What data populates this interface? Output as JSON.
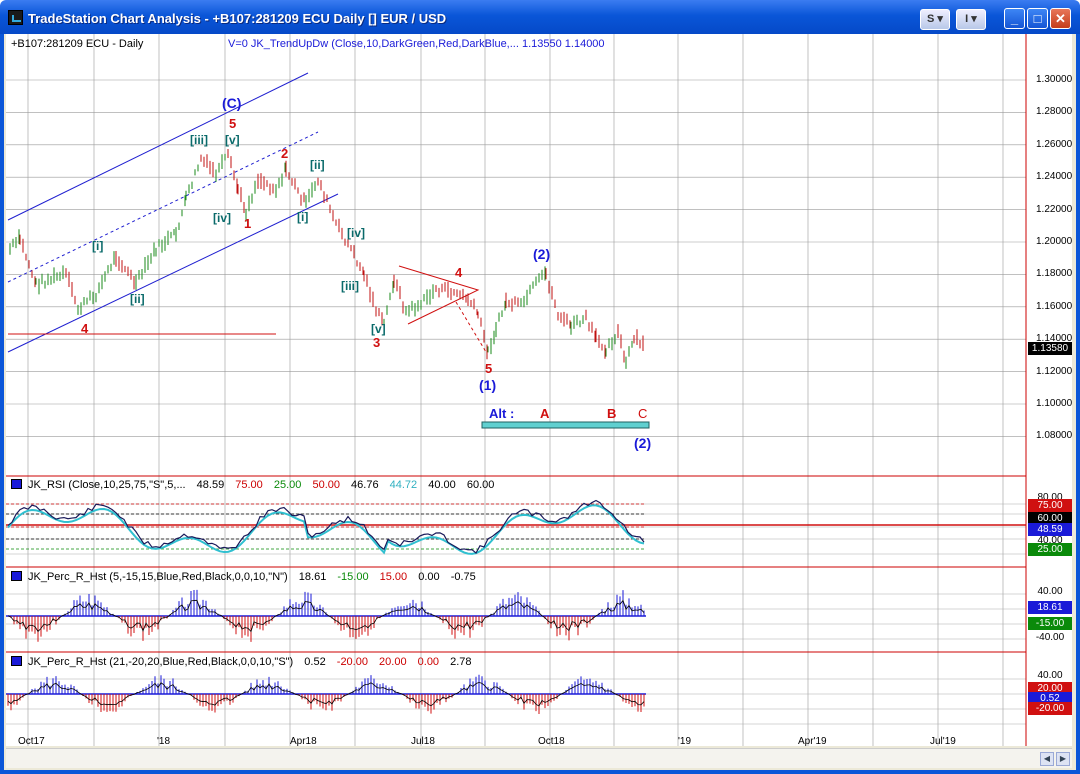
{
  "window": {
    "title": "TradeStation Chart Analysis - +B107:281209 ECU Daily [] EUR / USD",
    "s_button": "S",
    "i_button": "I",
    "min": "_",
    "max": "□",
    "close": "✕"
  },
  "header": {
    "symbol": "+B107:281209 ECU - Daily",
    "study": "V=0  JK_TrendUpDw (Close,10,DarkGreen,Red,DarkBlue,...  1.13550  1.14000"
  },
  "price_axis": [
    "1.30000",
    "1.28000",
    "1.26000",
    "1.24000",
    "1.22000",
    "1.20000",
    "1.18000",
    "1.16000",
    "1.14000",
    "1.12000",
    "1.10000",
    "1.08000"
  ],
  "last_price": "1.13580",
  "x_axis": [
    "Oct17",
    "'18",
    "Apr18",
    "Jul18",
    "Oct18",
    "'19",
    "Apr'19",
    "Jul'19"
  ],
  "annotations": {
    "c_wave": "(C)",
    "five_top": "5",
    "iii": "[iii]",
    "v": "[v]",
    "two": "2",
    "ii_top": "[ii]",
    "iv": "[iv]",
    "one": "1",
    "i_right": "[i]",
    "i_left": "[i]",
    "ii_left": "[ii]",
    "four_low": "4",
    "iv_mid": "[iv]",
    "iii_mid": "[iii]",
    "v_low": "[v]",
    "three": "3",
    "four_tri": "4",
    "five_low": "5",
    "one_wave": "(1)",
    "two_wave": "(2)",
    "alt": "Alt :",
    "A": "A",
    "B": "B",
    "C": "C",
    "two_alt": "(2)"
  },
  "panels": {
    "rsi": {
      "name": "JK_RSI (Close,10,25,75,\"S\",5,...",
      "v1": "48.59",
      "v2": "75.00",
      "v3": "25.00",
      "v4": "50.00",
      "v5": "46.76",
      "v6": "44.72",
      "v7": "40.00",
      "v8": "60.00",
      "axis": [
        "80.00",
        "75.00",
        "60.00",
        "48.59",
        "40.00",
        "25.00"
      ]
    },
    "perc1": {
      "name": "JK_Perc_R_Hst (5,-15,15,Blue,Red,Black,0,0,10,\"N\")",
      "v1": "18.61",
      "v2": "-15.00",
      "v3": "15.00",
      "v4": "0.00",
      "v5": "-0.75",
      "axis": [
        "40.00",
        "18.61",
        "-15.00",
        "-40.00"
      ]
    },
    "perc2": {
      "name": "JK_Perc_R_Hst (21,-20,20,Blue,Red,Black,0,0,10,\"S\")",
      "v1": "0.52",
      "v2": "-20.00",
      "v3": "20.00",
      "v4": "0.00",
      "v5": "2.78",
      "axis": [
        "40.00",
        "20.00",
        "0.52",
        "-20.00"
      ]
    }
  },
  "colors": {
    "title": "#0a56d8",
    "up_bar": "#1a8a1a",
    "down_bar": "#c01010",
    "wave_red": "#d01010",
    "wave_blue": "#1a1ad8",
    "cyan": "#30c0d0"
  }
}
